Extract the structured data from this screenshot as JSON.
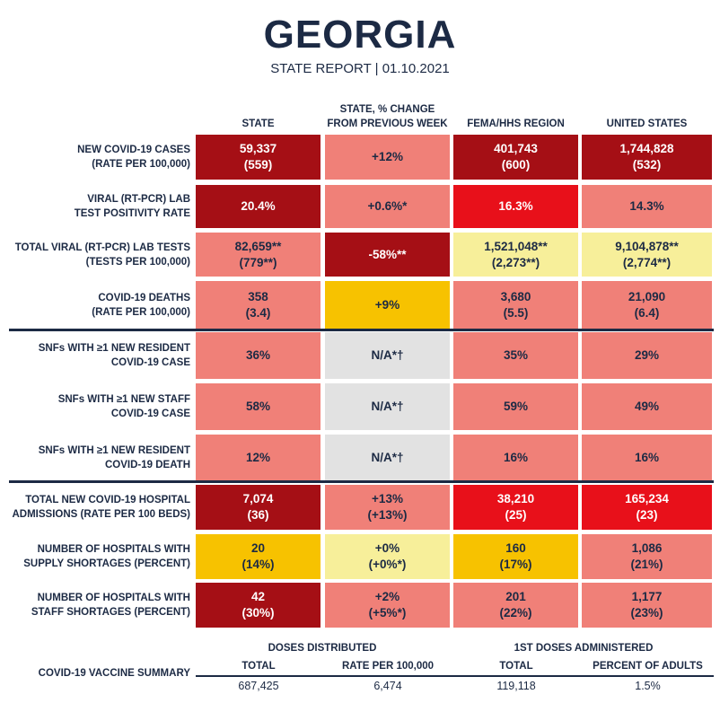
{
  "header": {
    "title": "GEORGIA",
    "subtitle": "STATE REPORT | 01.10.2021"
  },
  "columns": [
    "STATE",
    "STATE, % CHANGE\nFROM PREVIOUS WEEK",
    "FEMA/HHS REGION",
    "UNITED STATES"
  ],
  "rows": [
    {
      "label": "NEW COVID-19 CASES\n(RATE PER 100,000)",
      "cells": [
        {
          "text": "59,337\n(559)",
          "color": "dark"
        },
        {
          "text": "+12%",
          "color": "pink"
        },
        {
          "text": "401,743\n(600)",
          "color": "dark"
        },
        {
          "text": "1,744,828\n(532)",
          "color": "dark"
        }
      ]
    },
    {
      "label": "VIRAL (RT-PCR) LAB\nTEST POSITIVITY RATE",
      "cells": [
        {
          "text": "20.4%",
          "color": "dark"
        },
        {
          "text": "+0.6%*",
          "color": "pink"
        },
        {
          "text": "16.3%",
          "color": "red"
        },
        {
          "text": "14.3%",
          "color": "pink"
        }
      ]
    },
    {
      "label": "TOTAL VIRAL (RT-PCR) LAB TESTS\n(TESTS PER 100,000)",
      "cells": [
        {
          "text": "82,659**\n(779**)",
          "color": "pink"
        },
        {
          "text": "-58%**",
          "color": "dark"
        },
        {
          "text": "1,521,048**\n(2,273**)",
          "color": "yellow"
        },
        {
          "text": "9,104,878**\n(2,774**)",
          "color": "yellow"
        }
      ]
    },
    {
      "label": "COVID-19 DEATHS\n(RATE PER 100,000)",
      "cells": [
        {
          "text": "358\n(3.4)",
          "color": "pink"
        },
        {
          "text": "+9%",
          "color": "orange"
        },
        {
          "text": "3,680\n(5.5)",
          "color": "pink"
        },
        {
          "text": "21,090\n(6.4)",
          "color": "pink"
        }
      ]
    },
    {
      "label": "SNFs WITH ≥1 NEW RESIDENT\nCOVID-19 CASE",
      "cells": [
        {
          "text": "36%",
          "color": "pink"
        },
        {
          "text": "N/A*†",
          "color": "gray"
        },
        {
          "text": "35%",
          "color": "pink"
        },
        {
          "text": "29%",
          "color": "pink"
        }
      ]
    },
    {
      "label": "SNFs WITH ≥1 NEW STAFF\nCOVID-19 CASE",
      "cells": [
        {
          "text": "58%",
          "color": "pink"
        },
        {
          "text": "N/A*†",
          "color": "gray"
        },
        {
          "text": "59%",
          "color": "pink"
        },
        {
          "text": "49%",
          "color": "pink"
        }
      ]
    },
    {
      "label": "SNFs WITH ≥1 NEW RESIDENT\nCOVID-19 DEATH",
      "cells": [
        {
          "text": "12%",
          "color": "pink"
        },
        {
          "text": "N/A*†",
          "color": "gray"
        },
        {
          "text": "16%",
          "color": "pink"
        },
        {
          "text": "16%",
          "color": "pink"
        }
      ]
    },
    {
      "label": "TOTAL NEW COVID-19 HOSPITAL\nADMISSIONS (RATE PER 100 BEDS)",
      "cells": [
        {
          "text": "7,074\n(36)",
          "color": "dark"
        },
        {
          "text": "+13%\n(+13%)",
          "color": "pink"
        },
        {
          "text": "38,210\n(25)",
          "color": "red"
        },
        {
          "text": "165,234\n(23)",
          "color": "red"
        }
      ]
    },
    {
      "label": "NUMBER OF HOSPITALS WITH\nSUPPLY SHORTAGES (PERCENT)",
      "cells": [
        {
          "text": "20\n(14%)",
          "color": "orange"
        },
        {
          "text": "+0%\n(+0%*)",
          "color": "yellow"
        },
        {
          "text": "160\n(17%)",
          "color": "orange"
        },
        {
          "text": "1,086\n(21%)",
          "color": "pink"
        }
      ]
    },
    {
      "label": "NUMBER OF HOSPITALS WITH\nSTAFF SHORTAGES (PERCENT)",
      "cells": [
        {
          "text": "42\n(30%)",
          "color": "dark"
        },
        {
          "text": "+2%\n(+5%*)",
          "color": "pink"
        },
        {
          "text": "201\n(22%)",
          "color": "pink"
        },
        {
          "text": "1,177\n(23%)",
          "color": "pink"
        }
      ]
    }
  ],
  "vaccine": {
    "label": "COVID-19 VACCINE SUMMARY",
    "groups": [
      "DOSES DISTRIBUTED",
      "1ST DOSES ADMINISTERED"
    ],
    "subheaders": [
      "TOTAL",
      "RATE PER 100,000",
      "TOTAL",
      "PERCENT OF ADULTS"
    ],
    "values": [
      "687,425",
      "6,474",
      "119,118",
      "1.5%"
    ]
  }
}
